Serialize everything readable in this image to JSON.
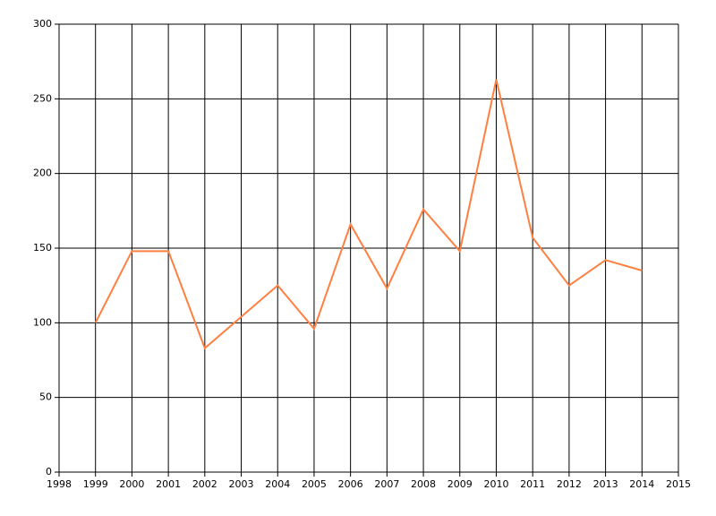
{
  "chart_data": {
    "type": "line",
    "x": [
      1999,
      2000,
      2001,
      2002,
      2003,
      2004,
      2005,
      2006,
      2007,
      2008,
      2009,
      2010,
      2011,
      2012,
      2013,
      2014
    ],
    "series": [
      {
        "color": "#ff7f40",
        "values": [
          100,
          148,
          148,
          83,
          104,
          125,
          96,
          166,
          123,
          176,
          148,
          263,
          157,
          125,
          142,
          135
        ]
      }
    ],
    "xlim": [
      1998,
      2015
    ],
    "xticks": [
      1998,
      1999,
      2000,
      2001,
      2002,
      2003,
      2004,
      2005,
      2006,
      2007,
      2008,
      2009,
      2010,
      2011,
      2012,
      2013,
      2014,
      2015
    ],
    "ylim": [
      0,
      300
    ],
    "yticks": [
      0,
      50,
      100,
      150,
      200,
      250,
      300
    ],
    "grid": true
  }
}
